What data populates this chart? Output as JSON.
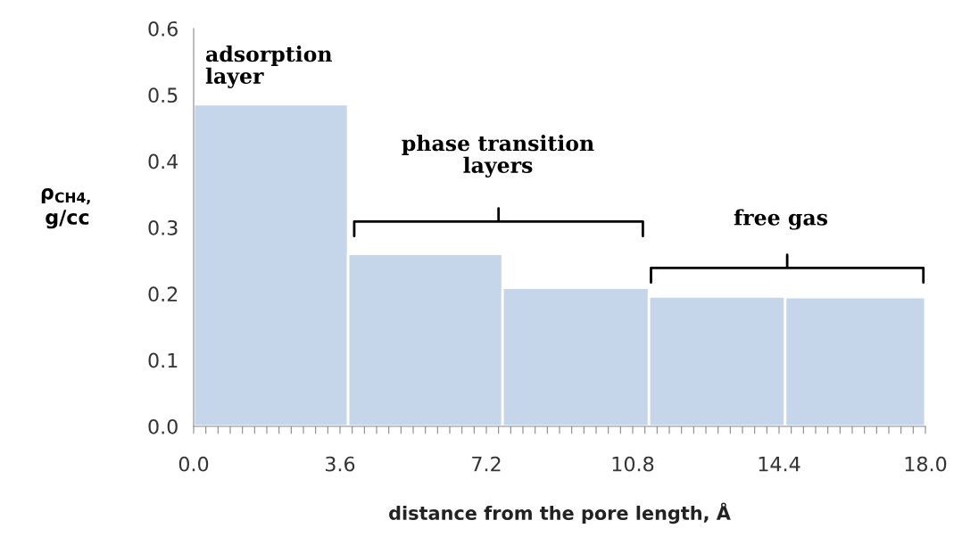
{
  "chart_data": {
    "type": "histogram",
    "bins": [
      0,
      3.8,
      7.6,
      11.2,
      14.55,
      18
    ],
    "values": [
      0.486,
      0.26,
      0.209,
      0.196,
      0.195
    ],
    "color": "#c5d5ea",
    "xlabel": "distance from the pore length, Å",
    "ylabel": "ρ$_{CH4,}$\ng/cc",
    "annotations": [
      "adsorption\nlayer",
      "phase transition\nlayers",
      "free gas"
    ],
    "xlim": [
      0,
      18
    ],
    "ylim": [
      0,
      0.6
    ],
    "xticks": [
      {
        "value": 0,
        "label": "0.0"
      },
      {
        "value": 0.3,
        "label": null
      },
      {
        "value": 0.6,
        "label": null
      },
      {
        "value": 0.9,
        "label": null
      },
      {
        "value": 1.2,
        "label": null
      },
      {
        "value": 1.5,
        "label": null
      },
      {
        "value": 1.8,
        "label": null
      },
      {
        "value": 2.1,
        "label": null
      },
      {
        "value": 2.4,
        "label": null
      },
      {
        "value": 2.7,
        "label": null
      },
      {
        "value": 3.0,
        "label": null
      },
      {
        "value": 3.3,
        "label": null
      },
      {
        "value": 3.6,
        "label": "3.6"
      },
      {
        "value": 3.9,
        "label": null
      },
      {
        "value": 4.2,
        "label": null
      },
      {
        "value": 4.5,
        "label": null
      },
      {
        "value": 4.8,
        "label": null
      },
      {
        "value": 5.1,
        "label": null
      },
      {
        "value": 5.4,
        "label": null
      },
      {
        "value": 5.7,
        "label": null
      },
      {
        "value": 6.0,
        "label": null
      },
      {
        "value": 6.3,
        "label": null
      },
      {
        "value": 6.6,
        "label": null
      },
      {
        "value": 6.9,
        "label": null
      },
      {
        "value": 7.2,
        "label": "7.2"
      },
      {
        "value": 7.5,
        "label": null
      },
      {
        "value": 7.8,
        "label": null
      },
      {
        "value": 8.1,
        "label": null
      },
      {
        "value": 8.4,
        "label": null
      },
      {
        "value": 8.7,
        "label": null
      },
      {
        "value": 9.0,
        "label": null
      },
      {
        "value": 9.3,
        "label": null
      },
      {
        "value": 9.6,
        "label": null
      },
      {
        "value": 9.9,
        "label": null
      },
      {
        "value": 10.2,
        "label": null
      },
      {
        "value": 10.5,
        "label": null
      },
      {
        "value": 10.8,
        "label": "10.8"
      },
      {
        "value": 11.1,
        "label": null
      },
      {
        "value": 11.4,
        "label": null
      },
      {
        "value": 11.7,
        "label": null
      },
      {
        "value": 12.0,
        "label": null
      },
      {
        "value": 12.3,
        "label": null
      },
      {
        "value": 12.6,
        "label": null
      },
      {
        "value": 12.9,
        "label": null
      },
      {
        "value": 13.2,
        "label": null
      },
      {
        "value": 13.5,
        "label": null
      },
      {
        "value": 13.8,
        "label": null
      },
      {
        "value": 14.1,
        "label": null
      },
      {
        "value": 14.4,
        "label": "14.4"
      },
      {
        "value": 14.7,
        "label": null
      },
      {
        "value": 15.0,
        "label": null
      },
      {
        "value": 15.3,
        "label": null
      },
      {
        "value": 15.6,
        "label": null
      },
      {
        "value": 15.9,
        "label": null
      },
      {
        "value": 16.2,
        "label": null
      },
      {
        "value": 16.5,
        "label": null
      },
      {
        "value": 16.8,
        "label": null
      },
      {
        "value": 17.1,
        "label": null
      },
      {
        "value": 17.4,
        "label": null
      },
      {
        "value": 17.7,
        "label": null
      },
      {
        "value": 18,
        "label": "18.0"
      }
    ],
    "yticks": [
      {
        "value": 0,
        "label": "0.0"
      },
      0.1,
      0.2,
      0.3,
      0.4,
      0.5,
      0.6
    ],
    "grid": false,
    "legend": false
  }
}
